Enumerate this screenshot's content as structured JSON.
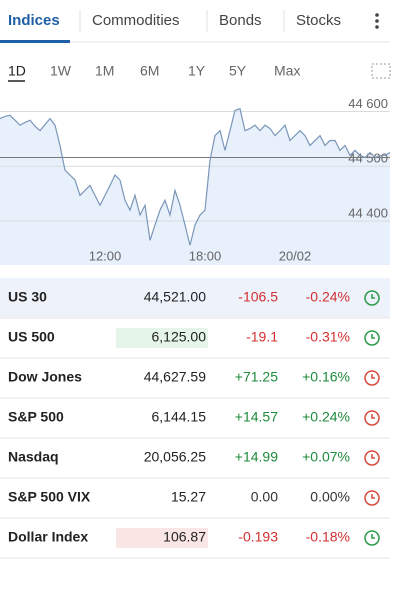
{
  "tabs": {
    "items": [
      "Indices",
      "Commodities",
      "Bonds",
      "Stocks"
    ],
    "active": 0
  },
  "ranges": {
    "items": [
      "1D",
      "1W",
      "1M",
      "6M",
      "1Y",
      "5Y",
      "Max"
    ],
    "active": 0
  },
  "chart_data": {
    "type": "line",
    "color": "#7a96b8",
    "fill": "#e8f0fb",
    "x": [
      0,
      1,
      2,
      3,
      4,
      5,
      6,
      7,
      8,
      9,
      10,
      11,
      12,
      13,
      14,
      15,
      16,
      17,
      18,
      19,
      20,
      21,
      22,
      23,
      24,
      25,
      26,
      27,
      28,
      29,
      30,
      31,
      32,
      33,
      34,
      35,
      36,
      37,
      38,
      39,
      40,
      41,
      42,
      43,
      44,
      45,
      46,
      47,
      48,
      49,
      50,
      51,
      52,
      53,
      54,
      55,
      56,
      57,
      58,
      59,
      60,
      61,
      62,
      63,
      64,
      65,
      66,
      67,
      68,
      69,
      70,
      71,
      72,
      73,
      74,
      75,
      76,
      77,
      78
    ],
    "values": [
      44587,
      44591,
      44593,
      44584,
      44575,
      44580,
      44584,
      44573,
      44565,
      44576,
      44587,
      44575,
      44538,
      44493,
      44484,
      44475,
      44447,
      44456,
      44465,
      44447,
      44429,
      44447,
      44465,
      44484,
      44475,
      44438,
      44420,
      44447,
      44411,
      44429,
      44365,
      44393,
      44420,
      44438,
      44411,
      44456,
      44429,
      44393,
      44356,
      44393,
      44411,
      44420,
      44511,
      44556,
      44565,
      44529,
      44565,
      44602,
      44605,
      44565,
      44569,
      44575,
      44565,
      44575,
      44569,
      44556,
      44565,
      44575,
      44547,
      44556,
      44565,
      44556,
      44538,
      44547,
      44556,
      44538,
      44547,
      44547,
      44529,
      44538,
      44520,
      44529,
      44520,
      44516,
      44525,
      44516,
      44520,
      44520,
      44525
    ],
    "reference_line": 44516,
    "xlim": [
      0,
      78
    ],
    "ylim": [
      44320,
      44630
    ],
    "xticks": [
      {
        "value": 21,
        "label": "12:00"
      },
      {
        "value": 41,
        "label": "18:00"
      },
      {
        "value": 59,
        "label": "20/02"
      }
    ],
    "yticks": [
      {
        "value": 44400,
        "label": "44 400"
      },
      {
        "value": 44500,
        "label": "44 500"
      },
      {
        "value": 44600,
        "label": "44 600"
      }
    ],
    "grid": true
  },
  "table": {
    "rows": [
      {
        "name": "US 30",
        "price": "44,521.00",
        "change": "-106.5",
        "change_pct": "-0.24%",
        "color": "#d32f2f",
        "clock_color": "#2e9b4a",
        "row_bg": "#eef3fb"
      },
      {
        "name": "US 500",
        "price": "6,125.00",
        "change": "-19.1",
        "change_pct": "-0.31%",
        "color": "#d32f2f",
        "clock_color": "#2e9b4a",
        "price_bg": "#e6f5ea"
      },
      {
        "name": "Dow Jones",
        "price": "44,627.59",
        "change": "+71.25",
        "change_pct": "+0.16%",
        "color": "#1e8a3c",
        "clock_color": "#d84a3a"
      },
      {
        "name": "S&P 500",
        "price": "6,144.15",
        "change": "+14.57",
        "change_pct": "+0.24%",
        "color": "#1e8a3c",
        "clock_color": "#d84a3a"
      },
      {
        "name": "Nasdaq",
        "price": "20,056.25",
        "change": "+14.99",
        "change_pct": "+0.07%",
        "color": "#1e8a3c",
        "clock_color": "#d84a3a"
      },
      {
        "name": "S&P 500 VIX",
        "price": "15.27",
        "change": "0.00",
        "change_pct": "0.00%",
        "color": "#333333",
        "clock_color": "#d84a3a"
      },
      {
        "name": "Dollar Index",
        "price": "106.87",
        "change": "-0.193",
        "change_pct": "-0.18%",
        "color": "#d32f2f",
        "clock_color": "#2e9b4a",
        "price_bg": "#fbe6e6"
      }
    ]
  }
}
